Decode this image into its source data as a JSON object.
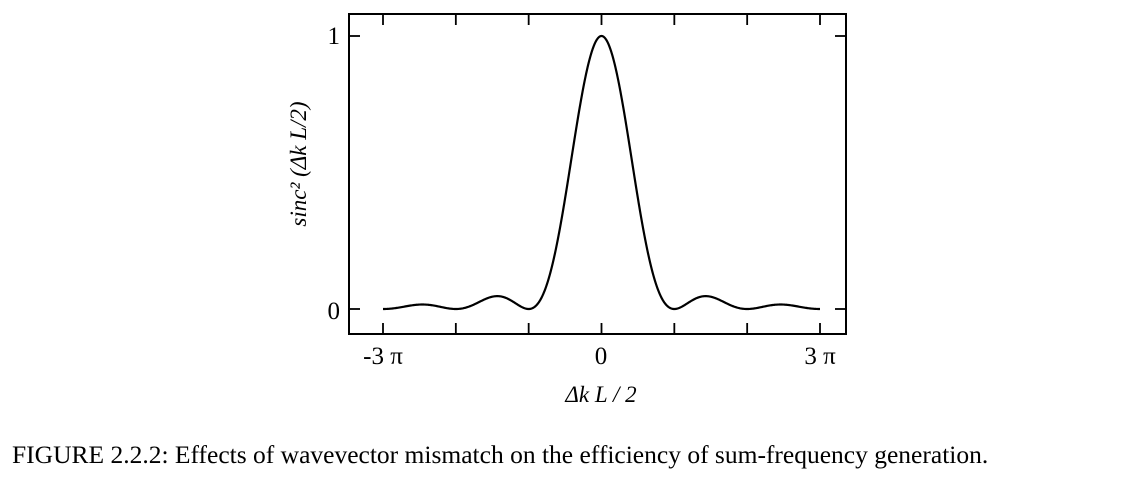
{
  "chart_data": {
    "type": "line",
    "function": "sinc^2(x)",
    "xlabel": "Δk L / 2",
    "ylabel": "sinc² (Δk L/2)",
    "xlim": [
      -9.4248,
      9.4248
    ],
    "ylim": [
      0,
      1
    ],
    "x_tick_labels": [
      "-3 π",
      "0",
      "3 π"
    ],
    "y_tick_labels": [
      "0",
      "1"
    ],
    "grid": false,
    "series": [
      {
        "x": [
          -9.42,
          -8.0,
          -7.73,
          -6.28,
          -5.0,
          -4.49,
          -3.14,
          -2.0,
          -1.0,
          0.0,
          1.0,
          2.0,
          3.14,
          4.49,
          5.0,
          6.28,
          7.73,
          8.0,
          9.42
        ],
        "y": [
          0.0,
          0.015,
          0.016,
          0.0,
          0.037,
          0.047,
          0.0,
          0.207,
          0.708,
          1.0,
          0.708,
          0.207,
          0.0,
          0.047,
          0.037,
          0.0,
          0.016,
          0.015,
          0.0
        ]
      }
    ]
  },
  "caption": "FIGURE 2.2.2: Effects of wavevector mismatch on the efficiency of sum-frequency generation."
}
